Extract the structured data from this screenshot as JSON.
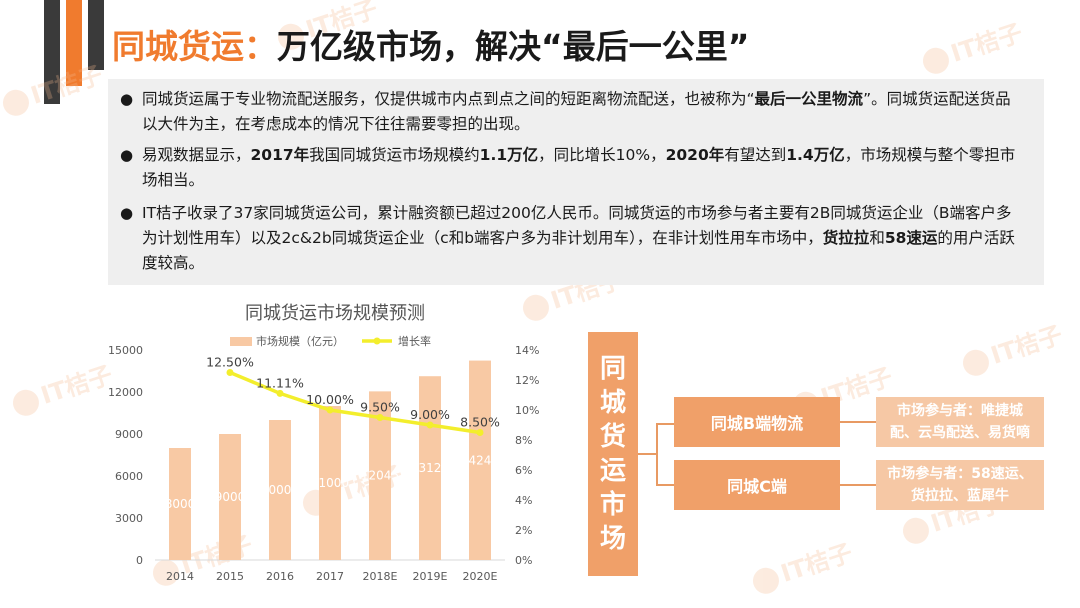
{
  "title": {
    "colored": "同城货运：",
    "rest": "万亿级市场，解决“最后一公里”"
  },
  "bullets": [
    {
      "segments": [
        {
          "t": "同城货运属于专业物流配送服务，仅提供城市内点到点之间的短距离物流配送，也被称为“"
        },
        {
          "t": "最后一公里物流",
          "b": true
        },
        {
          "t": "”。同城货运配送货品以大件为主，在考虑成本的情况下往往需要零担的出现。"
        }
      ]
    },
    {
      "segments": [
        {
          "t": "易观数据显示，"
        },
        {
          "t": "2017年",
          "b": true
        },
        {
          "t": "我国同城货运市场规模约"
        },
        {
          "t": "1.1万亿",
          "b": true
        },
        {
          "t": "，同比增长10%，"
        },
        {
          "t": "2020年",
          "b": true
        },
        {
          "t": "有望达到"
        },
        {
          "t": "1.4万亿",
          "b": true
        },
        {
          "t": "，市场规模与整个零担市场相当。"
        }
      ]
    },
    {
      "segments": [
        {
          "t": "IT桔子收录了37家同城货运公司，累计融资额已超过200亿人民币。同城货运的市场参与者主要有2B同城货运企业（B端客户多为计划性用车）以及2c&2b同城货运企业（c和b端客户多为非计划用车），在非计划性用车市场中，"
        },
        {
          "t": "货拉拉",
          "b": true
        },
        {
          "t": "和"
        },
        {
          "t": "58速运",
          "b": true
        },
        {
          "t": "的用户活跃度较高。"
        }
      ]
    }
  ],
  "chart_data": {
    "type": "bar",
    "title": "同城货运市场规模预测",
    "categories": [
      "2014",
      "2015",
      "2016",
      "2017",
      "2018E",
      "2019E",
      "2020E"
    ],
    "series": [
      {
        "name": "市场规模（亿元）",
        "type": "bar",
        "axis": "left",
        "values": [
          8000,
          9000,
          10000,
          11000,
          12045,
          13129,
          14245
        ],
        "labels": [
          "8000",
          "9000",
          "10000",
          "11000",
          "12045",
          "13129",
          "14245"
        ],
        "color": "#f8c9a4"
      },
      {
        "name": "增长率",
        "type": "line",
        "axis": "right",
        "values": [
          null,
          12.5,
          11.11,
          10.0,
          9.5,
          9.0,
          8.5
        ],
        "labels": [
          "",
          "12.50%",
          "11.11%",
          "10.00%",
          "9.50%",
          "9.00%",
          "8.50%"
        ],
        "color": "#f3ee2c"
      }
    ],
    "y_left": {
      "ticks": [
        "0",
        "3000",
        "6000",
        "9000",
        "12000",
        "15000"
      ],
      "range": [
        0,
        15000
      ]
    },
    "y_right": {
      "ticks": [
        "0%",
        "2%",
        "4%",
        "6%",
        "8%",
        "10%",
        "12%",
        "14%"
      ],
      "range": [
        0,
        14
      ]
    },
    "legend_position": "top",
    "grid": false
  },
  "diagram": {
    "root": "同城货运市场",
    "branches": [
      {
        "label": "同城B端物流",
        "participants": "市场参与者：唯捷城配、云鸟配送、易货嘀"
      },
      {
        "label": "同城C端",
        "participants": "市场参与者：58速运、货拉拉、蓝犀牛"
      }
    ]
  },
  "watermark": "IT桔子",
  "colors": {
    "accent": "#f07b2e",
    "dark_bar": "#3a3a3a",
    "box": "#f0a069",
    "box_light": "#f6c8a5"
  }
}
